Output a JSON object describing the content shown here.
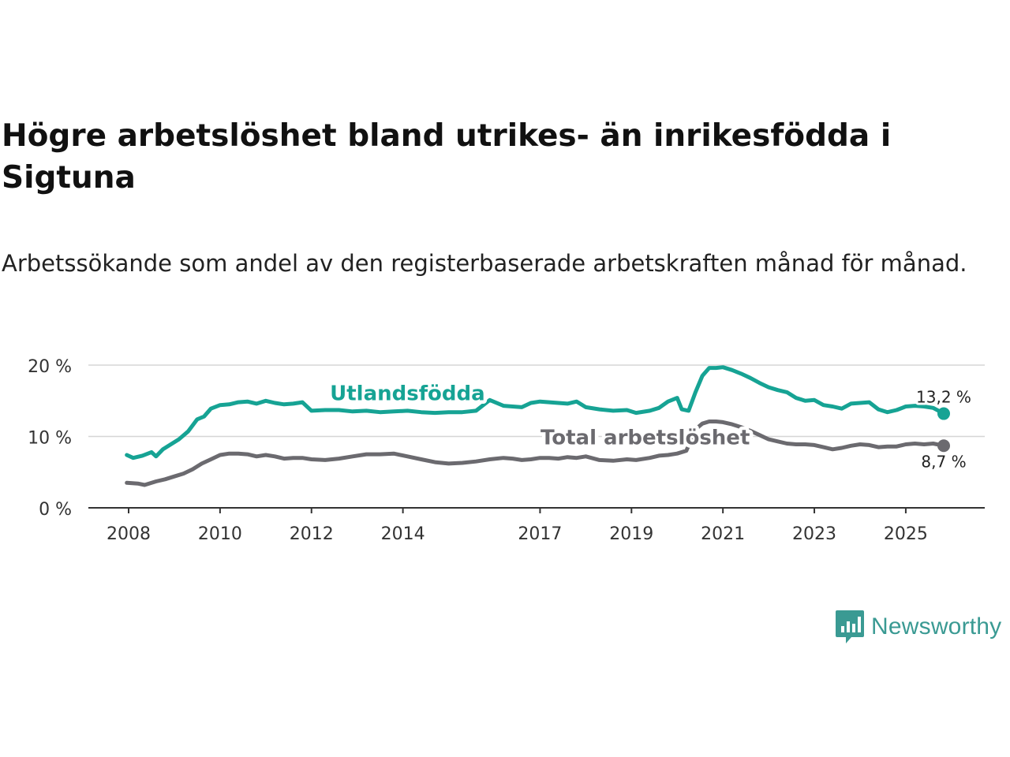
{
  "title": "Högre arbetslöshet bland utrikes- än inrikesfödda i Sigtuna",
  "subtitle": "Arbetssökande som andel av den registerbaserade arbetskraften månad för månad.",
  "brand": {
    "name": "Newsworthy",
    "color": "#3a9a93",
    "icon": "newsworthy-logo-icon"
  },
  "chart_data": {
    "type": "line",
    "title": "Högre arbetslöshet bland utrikes- än inrikesfödda i Sigtuna",
    "xlabel": "",
    "ylabel": "",
    "xlim": [
      2007.9,
      2026.1
    ],
    "ylim": [
      0,
      20
    ],
    "grid": true,
    "x_ticks": [
      {
        "value": 2008,
        "label": "2008"
      },
      {
        "value": 2010,
        "label": "2010"
      },
      {
        "value": 2012,
        "label": "2012"
      },
      {
        "value": 2014,
        "label": "2014"
      },
      {
        "value": 2017,
        "label": "2017"
      },
      {
        "value": 2019,
        "label": "2019"
      },
      {
        "value": 2021,
        "label": "2021"
      },
      {
        "value": 2023,
        "label": "2023"
      },
      {
        "value": 2025,
        "label": "2025"
      }
    ],
    "y_ticks": [
      {
        "value": 0,
        "label": "0 %"
      },
      {
        "value": 10,
        "label": "10 %"
      },
      {
        "value": 20,
        "label": "20 %"
      }
    ],
    "series": [
      {
        "name": "Utlandsfödda",
        "color": "#16a394",
        "end_label": "13,2 %",
        "x": [
          2007.96,
          2008.1,
          2008.3,
          2008.5,
          2008.6,
          2008.75,
          2008.9,
          2009.1,
          2009.3,
          2009.5,
          2009.65,
          2009.8,
          2010.0,
          2010.2,
          2010.4,
          2010.6,
          2010.8,
          2011.0,
          2011.2,
          2011.4,
          2011.6,
          2011.8,
          2012.0,
          2012.3,
          2012.6,
          2012.9,
          2013.2,
          2013.5,
          2013.8,
          2014.1,
          2014.4,
          2014.7,
          2015.0,
          2015.3,
          2015.6,
          2015.9,
          2016.2,
          2016.4,
          2016.6,
          2016.8,
          2017.0,
          2017.2,
          2017.4,
          2017.6,
          2017.8,
          2018.0,
          2018.3,
          2018.6,
          2018.9,
          2019.1,
          2019.4,
          2019.6,
          2019.8,
          2020.0,
          2020.1,
          2020.25,
          2020.4,
          2020.55,
          2020.7,
          2020.85,
          2021.0,
          2021.2,
          2021.4,
          2021.6,
          2021.8,
          2022.0,
          2022.2,
          2022.4,
          2022.6,
          2022.8,
          2023.0,
          2023.2,
          2023.4,
          2023.6,
          2023.8,
          2024.0,
          2024.2,
          2024.4,
          2024.6,
          2024.8,
          2025.0,
          2025.2,
          2025.4,
          2025.6,
          2025.83
        ],
        "values": [
          7.4,
          7.0,
          7.3,
          7.8,
          7.2,
          8.2,
          8.8,
          9.6,
          10.7,
          12.4,
          12.8,
          13.9,
          14.4,
          14.5,
          14.8,
          14.9,
          14.6,
          15.0,
          14.7,
          14.5,
          14.6,
          14.8,
          13.6,
          13.7,
          13.7,
          13.5,
          13.6,
          13.4,
          13.5,
          13.6,
          13.4,
          13.3,
          13.4,
          13.4,
          13.6,
          15.1,
          14.3,
          14.2,
          14.1,
          14.7,
          14.9,
          14.8,
          14.7,
          14.6,
          14.9,
          14.1,
          13.8,
          13.6,
          13.7,
          13.3,
          13.6,
          14.0,
          14.9,
          15.4,
          13.8,
          13.6,
          16.2,
          18.5,
          19.6,
          19.6,
          19.7,
          19.3,
          18.8,
          18.2,
          17.5,
          16.9,
          16.5,
          16.2,
          15.4,
          15.0,
          15.1,
          14.4,
          14.2,
          13.9,
          14.6,
          14.7,
          14.8,
          13.8,
          13.4,
          13.7,
          14.2,
          14.3,
          14.2,
          14.0,
          13.2
        ]
      },
      {
        "name": "Total arbetslöshet",
        "color": "#6b6a6f",
        "end_label": "8,7 %",
        "x": [
          2007.96,
          2008.2,
          2008.35,
          2008.6,
          2008.8,
          2009.0,
          2009.2,
          2009.4,
          2009.6,
          2009.8,
          2010.0,
          2010.2,
          2010.4,
          2010.6,
          2010.8,
          2011.0,
          2011.2,
          2011.4,
          2011.6,
          2011.8,
          2012.0,
          2012.3,
          2012.6,
          2012.9,
          2013.2,
          2013.5,
          2013.8,
          2014.1,
          2014.4,
          2014.7,
          2015.0,
          2015.3,
          2015.6,
          2015.9,
          2016.2,
          2016.4,
          2016.6,
          2016.8,
          2017.0,
          2017.2,
          2017.4,
          2017.6,
          2017.8,
          2018.0,
          2018.3,
          2018.6,
          2018.9,
          2019.1,
          2019.4,
          2019.6,
          2019.8,
          2020.0,
          2020.2,
          2020.4,
          2020.55,
          2020.7,
          2020.85,
          2021.0,
          2021.2,
          2021.4,
          2021.6,
          2021.8,
          2022.0,
          2022.2,
          2022.4,
          2022.6,
          2022.8,
          2023.0,
          2023.2,
          2023.4,
          2023.6,
          2023.8,
          2024.0,
          2024.2,
          2024.4,
          2024.6,
          2024.8,
          2025.0,
          2025.2,
          2025.4,
          2025.6,
          2025.83
        ],
        "values": [
          3.5,
          3.4,
          3.2,
          3.7,
          4.0,
          4.4,
          4.8,
          5.4,
          6.2,
          6.8,
          7.4,
          7.6,
          7.6,
          7.5,
          7.2,
          7.4,
          7.2,
          6.9,
          7.0,
          7.0,
          6.8,
          6.7,
          6.9,
          7.2,
          7.5,
          7.5,
          7.6,
          7.2,
          6.8,
          6.4,
          6.2,
          6.3,
          6.5,
          6.8,
          7.0,
          6.9,
          6.7,
          6.8,
          7.0,
          7.0,
          6.9,
          7.1,
          7.0,
          7.2,
          6.7,
          6.6,
          6.8,
          6.7,
          7.0,
          7.3,
          7.4,
          7.6,
          8.0,
          11.0,
          11.8,
          12.1,
          12.1,
          12.0,
          11.7,
          11.3,
          10.8,
          10.2,
          9.6,
          9.3,
          9.0,
          8.9,
          8.9,
          8.8,
          8.5,
          8.2,
          8.4,
          8.7,
          8.9,
          8.8,
          8.5,
          8.6,
          8.6,
          8.9,
          9.0,
          8.9,
          9.0,
          8.7
        ]
      }
    ],
    "annotations": [
      {
        "text": "Utlandsfödda",
        "series": 0,
        "x": 2014.1,
        "y": 15.1
      },
      {
        "text": "Total arbetslöshet",
        "series": 1,
        "x": 2019.3,
        "y": 8.9
      }
    ]
  }
}
